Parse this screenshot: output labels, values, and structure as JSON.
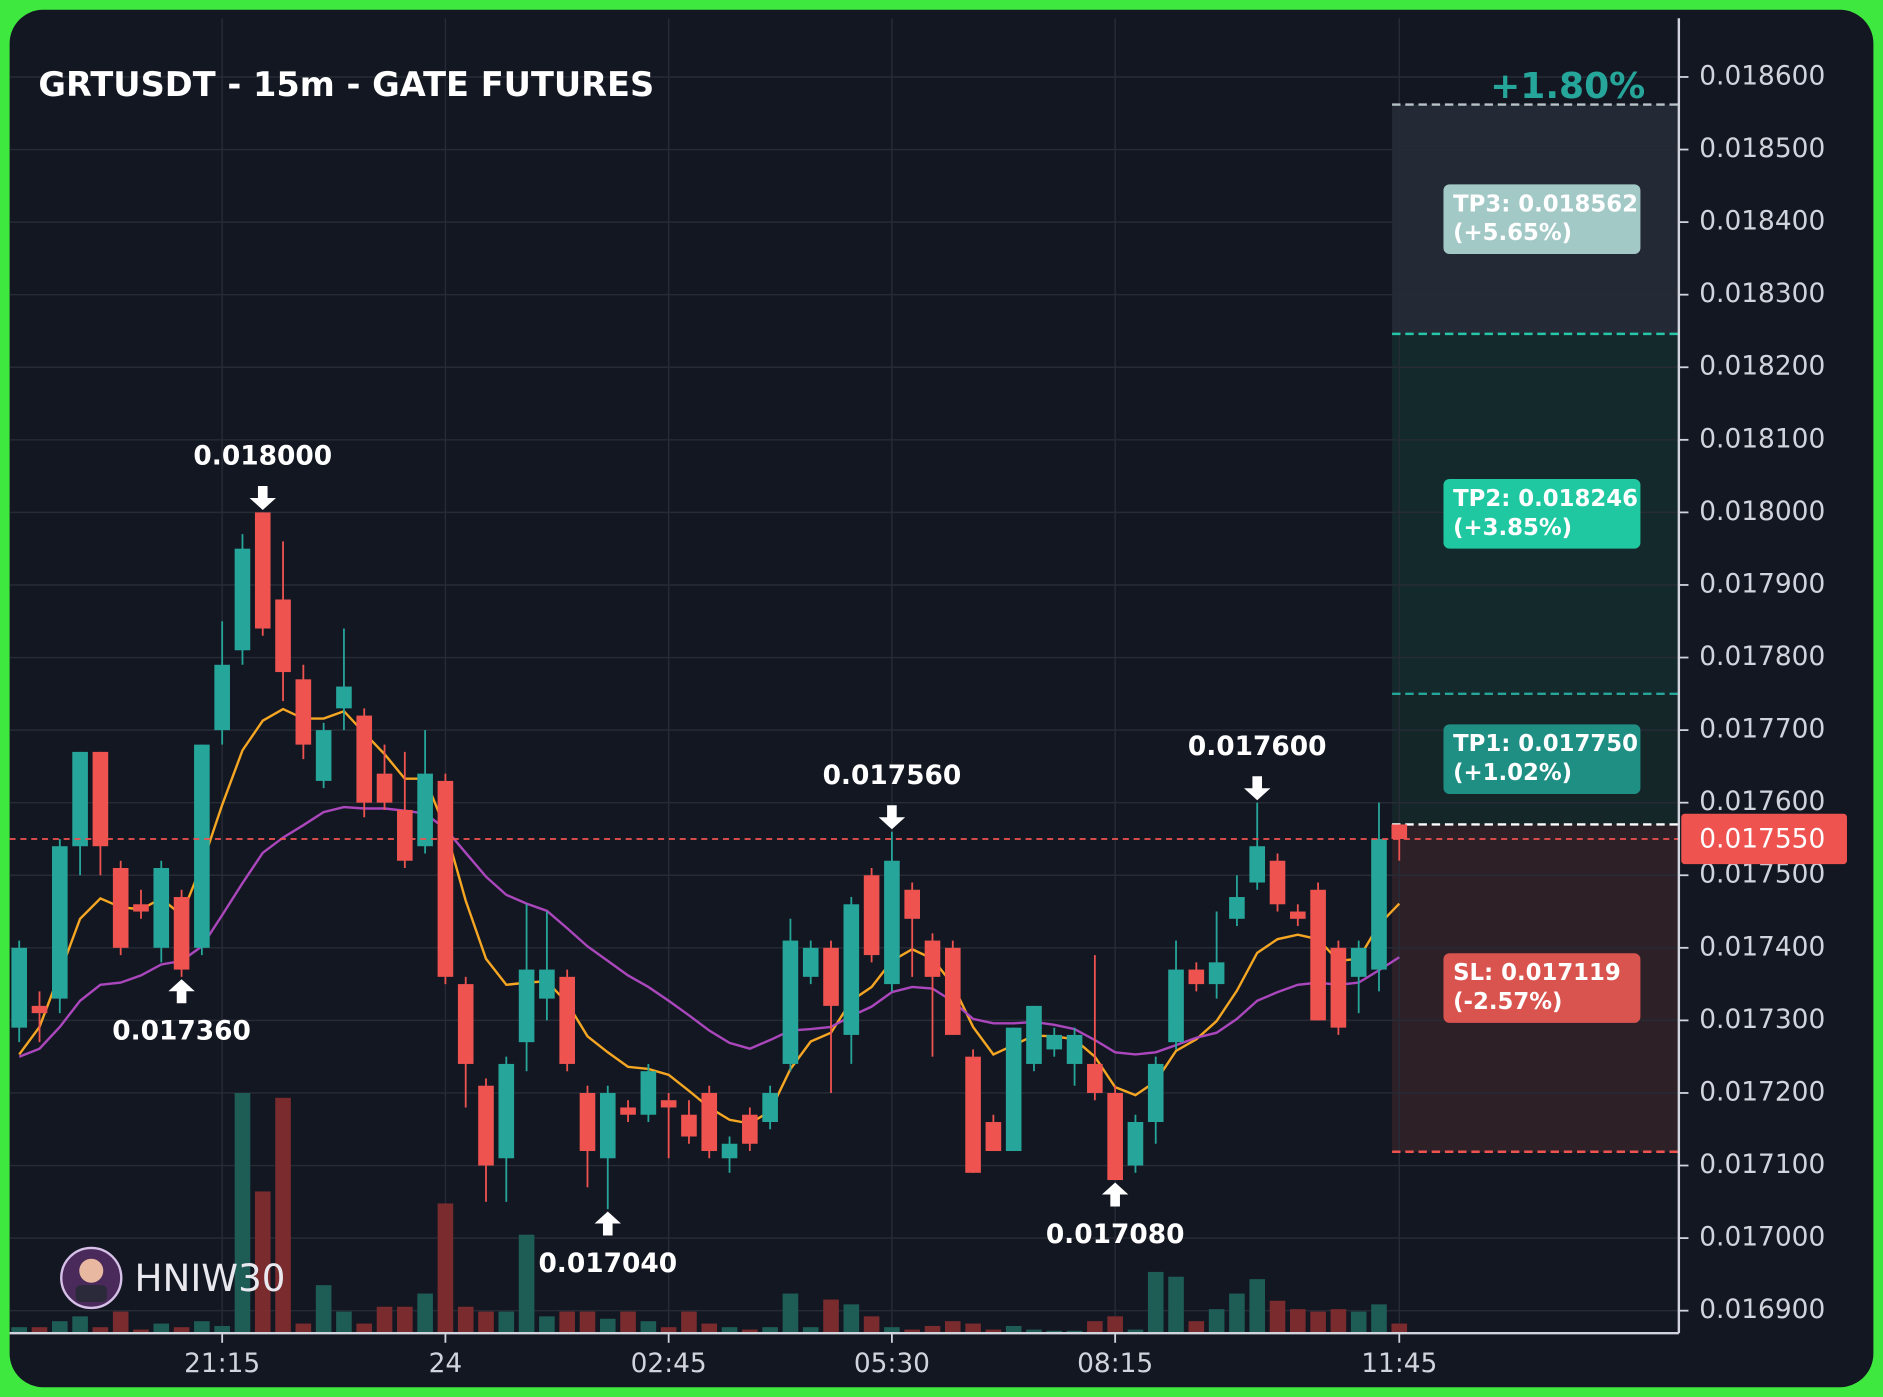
{
  "chart_data": {
    "type": "candlestick",
    "title": "GRTUSDT - 15m - GATE FUTURES",
    "header_change": "+1.80%",
    "header_change_color": "#26a69a",
    "watermark": "HNIW30",
    "up_color": "#26a69a",
    "down_color": "#ef5350",
    "up_volume_color": "#1e5c56",
    "down_volume_color": "#7a2b2d",
    "grid": true,
    "categories": [
      null,
      null,
      null,
      null,
      null,
      null,
      null,
      null,
      null,
      null,
      "21:15",
      null,
      null,
      null,
      null,
      null,
      null,
      null,
      null,
      null,
      null,
      "24",
      null,
      null,
      null,
      null,
      null,
      null,
      null,
      null,
      null,
      null,
      "02:45",
      null,
      null,
      null,
      null,
      null,
      null,
      null,
      null,
      null,
      null,
      "05:30",
      null,
      null,
      null,
      null,
      null,
      null,
      null,
      null,
      null,
      null,
      "08:15",
      null,
      null,
      null,
      null,
      null,
      null,
      null,
      null,
      null,
      null,
      null,
      null,
      null,
      "11:45"
    ],
    "open": [
      0.01729,
      0.01732,
      0.01733,
      0.01754,
      0.01767,
      0.01751,
      0.01746,
      0.0174,
      0.01747,
      0.0174,
      0.0177,
      0.01781,
      0.018,
      0.01788,
      0.01777,
      0.01763,
      0.01773,
      0.01772,
      0.01764,
      0.01759,
      0.01754,
      0.01763,
      0.01735,
      0.01721,
      0.01711,
      0.01727,
      0.01733,
      0.01736,
      0.0172,
      0.01711,
      0.01718,
      0.01717,
      0.01719,
      0.01717,
      0.0172,
      0.01711,
      0.01717,
      0.01716,
      0.01724,
      0.01736,
      0.0174,
      0.01728,
      0.0175,
      0.01735,
      0.01748,
      0.01741,
      0.0174,
      0.01725,
      0.01716,
      0.01712,
      0.01724,
      0.01726,
      0.01724,
      0.01724,
      0.0172,
      0.0171,
      0.01716,
      0.01727,
      0.01737,
      0.01735,
      0.01744,
      0.01749,
      0.01752,
      0.01745,
      0.01748,
      0.0174,
      0.01736,
      0.01737,
      0.01757
    ],
    "high": [
      0.01741,
      0.01734,
      0.01755,
      0.01767,
      0.01767,
      0.01752,
      0.01748,
      0.01752,
      0.01748,
      0.01768,
      0.01785,
      0.01797,
      0.018,
      0.01796,
      0.01779,
      0.01771,
      0.01784,
      0.01773,
      0.01768,
      0.01767,
      0.0177,
      0.01764,
      0.01736,
      0.01722,
      0.01725,
      0.01746,
      0.01745,
      0.01737,
      0.01721,
      0.01721,
      0.01719,
      0.01724,
      0.0172,
      0.01719,
      0.01721,
      0.01714,
      0.01718,
      0.01721,
      0.01744,
      0.01741,
      0.01741,
      0.01747,
      0.01751,
      0.01756,
      0.01749,
      0.01742,
      0.01741,
      0.01726,
      0.01717,
      0.01729,
      0.01732,
      0.01729,
      0.01729,
      0.01739,
      0.01721,
      0.01717,
      0.01725,
      0.01741,
      0.01738,
      0.01745,
      0.0175,
      0.0176,
      0.01753,
      0.01746,
      0.01749,
      0.01741,
      0.01741,
      0.0176,
      0.01757
    ],
    "low": [
      0.01727,
      0.01727,
      0.01731,
      0.0175,
      0.0175,
      0.01739,
      0.01744,
      0.01738,
      0.01736,
      0.01739,
      0.01768,
      0.01779,
      0.01783,
      0.01774,
      0.01766,
      0.01762,
      0.0177,
      0.01758,
      0.01759,
      0.01751,
      0.01753,
      0.01735,
      0.01718,
      0.01705,
      0.01705,
      0.01723,
      0.0173,
      0.01723,
      0.01707,
      0.01704,
      0.01716,
      0.01716,
      0.01711,
      0.01713,
      0.01711,
      0.01709,
      0.01712,
      0.01715,
      0.01723,
      0.01735,
      0.0172,
      0.01724,
      0.01738,
      0.01734,
      0.01736,
      0.01725,
      0.01728,
      0.01709,
      0.01712,
      0.01712,
      0.01723,
      0.01725,
      0.01721,
      0.01719,
      0.01708,
      0.01709,
      0.01713,
      0.01726,
      0.01734,
      0.01733,
      0.01743,
      0.01748,
      0.01745,
      0.01743,
      0.0173,
      0.01728,
      0.01731,
      0.01734,
      0.01752
    ],
    "close": [
      0.0174,
      0.01731,
      0.01754,
      0.01767,
      0.01754,
      0.0174,
      0.01745,
      0.01751,
      0.01737,
      0.01768,
      0.01779,
      0.01795,
      0.01784,
      0.01778,
      0.01768,
      0.0177,
      0.01776,
      0.0176,
      0.0176,
      0.01752,
      0.01764,
      0.01736,
      0.01724,
      0.0171,
      0.01724,
      0.01737,
      0.01737,
      0.01724,
      0.01712,
      0.0172,
      0.01717,
      0.01723,
      0.01718,
      0.01714,
      0.01712,
      0.01713,
      0.01713,
      0.0172,
      0.01741,
      0.0174,
      0.01732,
      0.01746,
      0.01739,
      0.01752,
      0.01744,
      0.01736,
      0.01728,
      0.01709,
      0.01712,
      0.01729,
      0.01732,
      0.01728,
      0.01728,
      0.0172,
      0.01708,
      0.01716,
      0.01724,
      0.01737,
      0.01735,
      0.01738,
      0.01747,
      0.01754,
      0.01746,
      0.01744,
      0.0173,
      0.01729,
      0.0174,
      0.01755,
      0.01755
    ],
    "volume": [
      5,
      5,
      10,
      14,
      5,
      18,
      3,
      8,
      5,
      10,
      6,
      200,
      118,
      196,
      8,
      40,
      18,
      8,
      22,
      22,
      33,
      108,
      22,
      18,
      18,
      82,
      14,
      18,
      18,
      12,
      18,
      10,
      5,
      18,
      8,
      5,
      3,
      5,
      33,
      5,
      28,
      24,
      14,
      5,
      3,
      6,
      10,
      8,
      3,
      6,
      3,
      2,
      2,
      10,
      14,
      3,
      51,
      47,
      10,
      20,
      33,
      45,
      27,
      20,
      18,
      20,
      18,
      24,
      8
    ],
    "lines": [
      {
        "color": "#f5a623",
        "values": [
          0.017253,
          0.017291,
          0.017365,
          0.01744,
          0.017468,
          0.017456,
          0.017453,
          0.017468,
          0.017445,
          0.017514,
          0.017597,
          0.017672,
          0.017713,
          0.017729,
          0.017716,
          0.017716,
          0.017726,
          0.017696,
          0.017667,
          0.017633,
          0.017633,
          0.017564,
          0.017465,
          0.017385,
          0.017349,
          0.017352,
          0.017354,
          0.017324,
          0.017278,
          0.017256,
          0.017236,
          0.017233,
          0.017225,
          0.017203,
          0.01718,
          0.017163,
          0.017158,
          0.017175,
          0.017233,
          0.017271,
          0.017283,
          0.017327,
          0.017346,
          0.017382,
          0.017398,
          0.017385,
          0.017349,
          0.017291,
          0.017253,
          0.017266,
          0.017279,
          0.017278,
          0.017274,
          0.01725,
          0.017208,
          0.017197,
          0.017216,
          0.017258,
          0.017274,
          0.017299,
          0.017341,
          0.017393,
          0.017412,
          0.017418,
          0.017412,
          0.017382,
          0.017385,
          0.017432,
          0.017461
        ]
      },
      {
        "color": "#ab47bc",
        "values": [
          0.01725,
          0.017261,
          0.017291,
          0.017327,
          0.017349,
          0.017352,
          0.017362,
          0.017377,
          0.017382,
          0.017402,
          0.017445,
          0.017489,
          0.017531,
          0.017552,
          0.017569,
          0.017587,
          0.017594,
          0.017592,
          0.017592,
          0.017589,
          0.017585,
          0.017564,
          0.017531,
          0.017498,
          0.017473,
          0.017461,
          0.017451,
          0.017427,
          0.017402,
          0.017382,
          0.017362,
          0.017346,
          0.017327,
          0.017307,
          0.017286,
          0.017269,
          0.017261,
          0.017273,
          0.017286,
          0.017288,
          0.017291,
          0.017306,
          0.017319,
          0.017339,
          0.017346,
          0.017344,
          0.017326,
          0.017302,
          0.017296,
          0.017296,
          0.017298,
          0.017294,
          0.017288,
          0.017273,
          0.017256,
          0.017253,
          0.017256,
          0.017266,
          0.017276,
          0.017283,
          0.017302,
          0.017327,
          0.017339,
          0.017349,
          0.017352,
          0.017349,
          0.017352,
          0.017369,
          0.017387
        ]
      }
    ],
    "ylim": [
      0.016869,
      0.018681
    ],
    "yticks": [
      {
        "value": 0.0169,
        "label": "0.016900"
      },
      {
        "value": 0.017,
        "label": "0.017000"
      },
      {
        "value": 0.0171,
        "label": "0.017100"
      },
      {
        "value": 0.0172,
        "label": "0.017200"
      },
      {
        "value": 0.0173,
        "label": "0.017300"
      },
      {
        "value": 0.0174,
        "label": "0.017400"
      },
      {
        "value": 0.0175,
        "label": "0.017500"
      },
      {
        "value": 0.0176,
        "label": "0.017600"
      },
      {
        "value": 0.0177,
        "label": "0.017700"
      },
      {
        "value": 0.0178,
        "label": "0.017800"
      },
      {
        "value": 0.0179,
        "label": "0.017900"
      },
      {
        "value": 0.018,
        "label": "0.018000"
      },
      {
        "value": 0.0181,
        "label": "0.018100"
      },
      {
        "value": 0.0182,
        "label": "0.018200"
      },
      {
        "value": 0.0183,
        "label": "0.018300"
      },
      {
        "value": 0.0184,
        "label": "0.018400"
      },
      {
        "value": 0.0185,
        "label": "0.018500"
      },
      {
        "value": 0.0186,
        "label": "0.018600"
      }
    ],
    "last_price": {
      "value": 0.01755,
      "label": "0.017550",
      "color": "#ef5350"
    },
    "annotations": [
      {
        "candle": 12,
        "value": 0.018,
        "label": "0.018000",
        "side": "above"
      },
      {
        "candle": 8,
        "value": 0.01736,
        "label": "0.017360",
        "side": "below"
      },
      {
        "candle": 29,
        "value": 0.01704,
        "label": "0.017040",
        "side": "below"
      },
      {
        "candle": 43,
        "value": 0.01756,
        "label": "0.017560",
        "side": "above"
      },
      {
        "candle": 54,
        "value": 0.01708,
        "label": "0.017080",
        "side": "below"
      },
      {
        "candle": 61,
        "value": 0.0176,
        "label": "0.017600",
        "side": "above"
      }
    ],
    "position": {
      "entry": 0.01757,
      "targets": [
        {
          "value": 0.01775,
          "label": "TP1: 0.017750",
          "change": "(+1.02%)",
          "color": "#1f8f84",
          "line_color": "#26a69a",
          "zone_color": "#142628"
        },
        {
          "value": 0.018246,
          "label": "TP2: 0.018246",
          "change": "(+3.85%)",
          "color": "#1fc8a0",
          "line_color": "#26c6a9",
          "zone_color": "#14292c"
        },
        {
          "value": 0.018562,
          "label": "TP3: 0.018562",
          "change": "(+5.65%)",
          "color": "#a3c9c7",
          "line_color": "#b8c4c8",
          "zone_color": "#232935"
        }
      ],
      "stop": {
        "value": 0.017119,
        "label": "SL: 0.017119",
        "change": "(-2.57%)",
        "color": "#d9534f",
        "line_color": "#ef5350",
        "zone_color": "#2e2027"
      }
    }
  }
}
